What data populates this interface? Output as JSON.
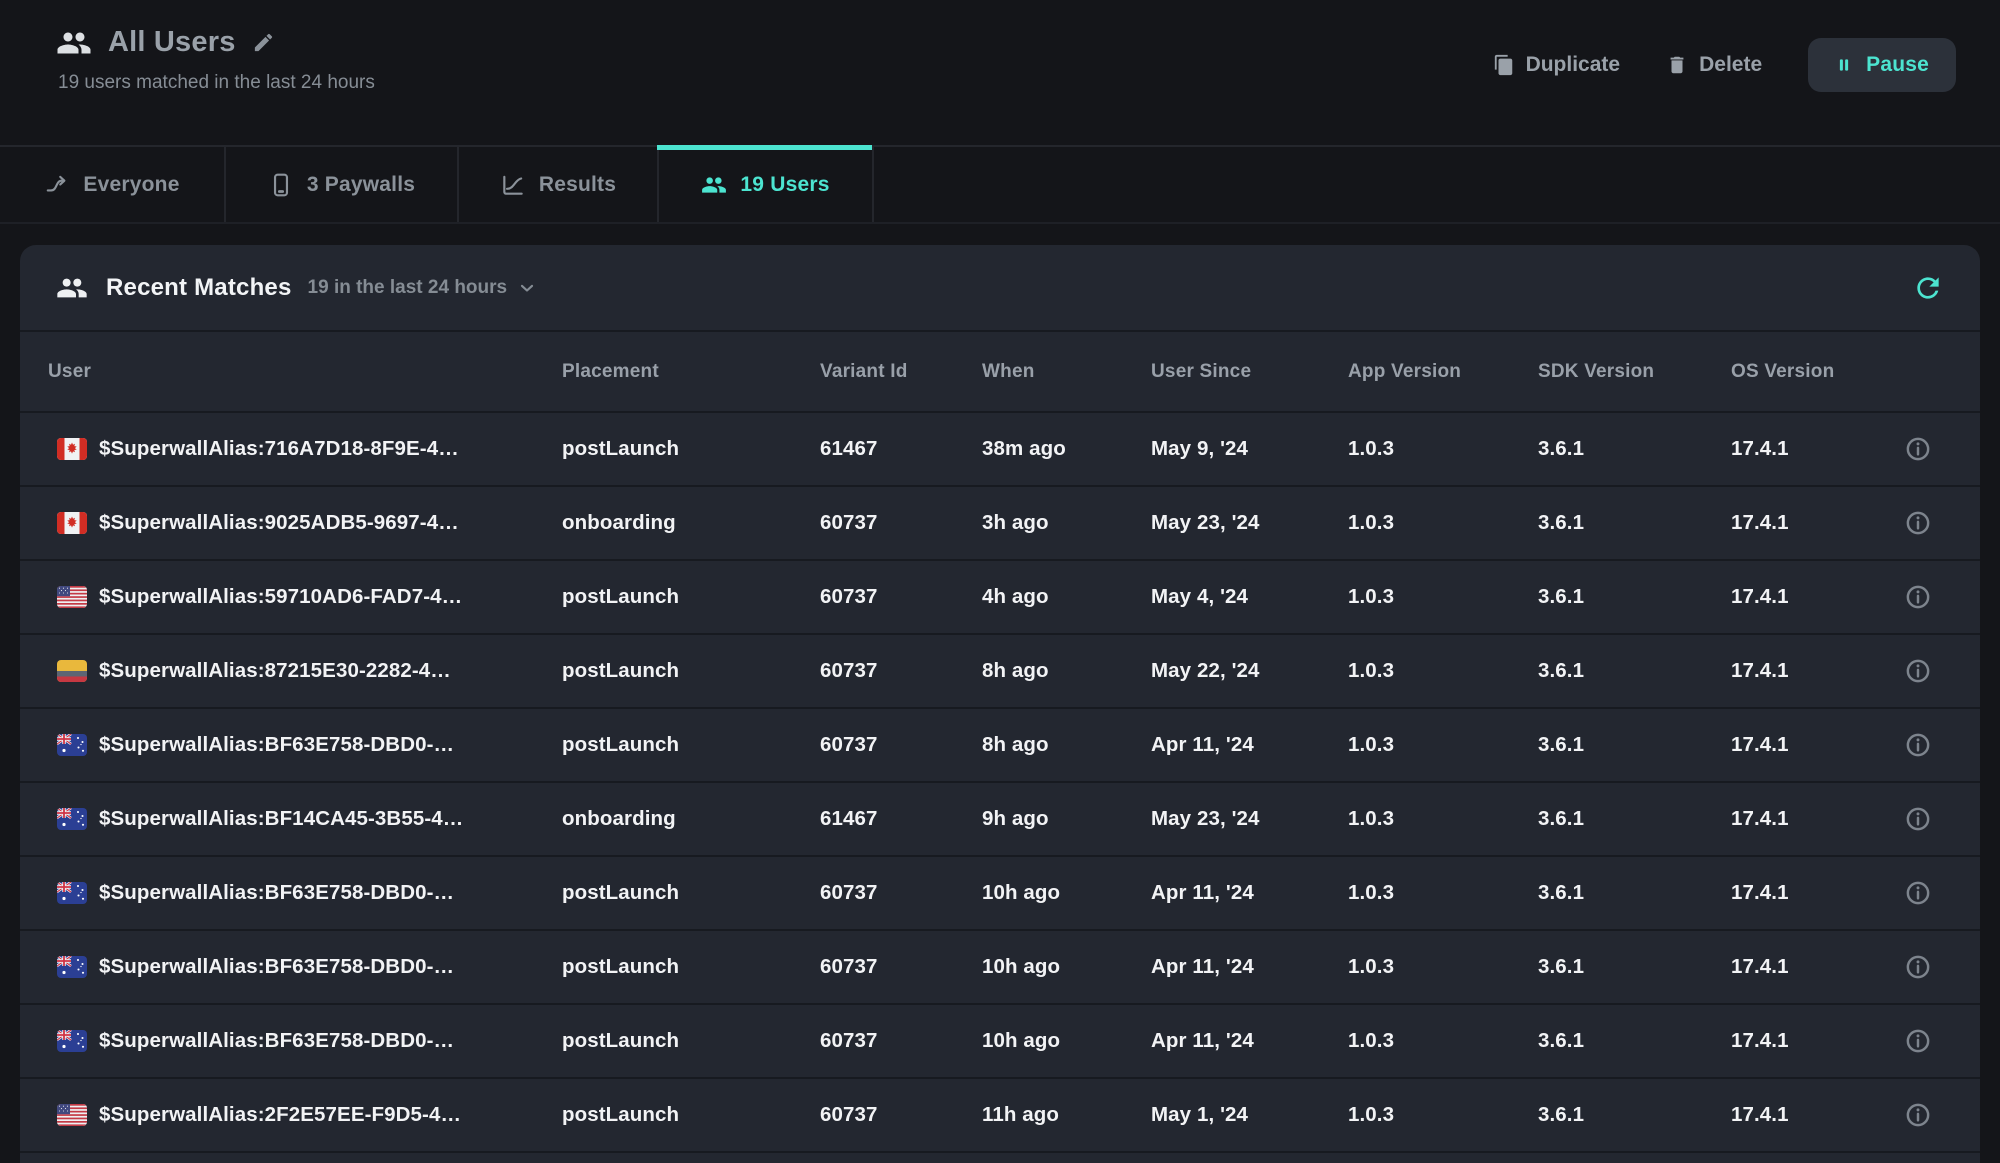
{
  "header": {
    "title": "All Users",
    "subtitle": "19 users matched in the last 24 hours",
    "icon": "users-icon",
    "edit_icon": "pencil-icon"
  },
  "actions": {
    "duplicate": {
      "label": "Duplicate",
      "icon": "copy-icon"
    },
    "delete": {
      "label": "Delete",
      "icon": "trash-icon"
    },
    "pause": {
      "label": "Pause",
      "icon": "pause-icon"
    }
  },
  "tabs": [
    {
      "label": "Everyone",
      "icon": "branch-arrow-icon",
      "active": false
    },
    {
      "label": "3 Paywalls",
      "icon": "phone-icon",
      "active": false
    },
    {
      "label": "Results",
      "icon": "line-chart-icon",
      "active": false
    },
    {
      "label": "19 Users",
      "icon": "users-icon",
      "active": true
    }
  ],
  "card": {
    "title": "Recent Matches",
    "icon": "users-icon",
    "range_filter": "19 in the last 24 hours",
    "range_chevron": "chevron-down-icon",
    "refresh_icon": "refresh-icon"
  },
  "table": {
    "columns": [
      "User",
      "Placement",
      "Variant Id",
      "When",
      "User Since",
      "App Version",
      "SDK Version",
      "OS Version"
    ],
    "rows": [
      {
        "flag": "canada",
        "user": "$SuperwallAlias:716A7D18-8F9E-4…",
        "placement": "postLaunch",
        "variant_id": "61467",
        "when": "38m ago",
        "user_since": "May 9, '24",
        "app_version": "1.0.3",
        "sdk_version": "3.6.1",
        "os_version": "17.4.1"
      },
      {
        "flag": "canada",
        "user": "$SuperwallAlias:9025ADB5-9697-4…",
        "placement": "onboarding",
        "variant_id": "60737",
        "when": "3h ago",
        "user_since": "May 23, '24",
        "app_version": "1.0.3",
        "sdk_version": "3.6.1",
        "os_version": "17.4.1"
      },
      {
        "flag": "usa",
        "user": "$SuperwallAlias:59710AD6-FAD7-4…",
        "placement": "postLaunch",
        "variant_id": "60737",
        "when": "4h ago",
        "user_since": "May 4, '24",
        "app_version": "1.0.3",
        "sdk_version": "3.6.1",
        "os_version": "17.4.1"
      },
      {
        "flag": "colombia",
        "user": "$SuperwallAlias:87215E30-2282-4…",
        "placement": "postLaunch",
        "variant_id": "60737",
        "when": "8h ago",
        "user_since": "May 22, '24",
        "app_version": "1.0.3",
        "sdk_version": "3.6.1",
        "os_version": "17.4.1"
      },
      {
        "flag": "australia",
        "user": "$SuperwallAlias:BF63E758-DBD0-…",
        "placement": "postLaunch",
        "variant_id": "60737",
        "when": "8h ago",
        "user_since": "Apr 11, '24",
        "app_version": "1.0.3",
        "sdk_version": "3.6.1",
        "os_version": "17.4.1"
      },
      {
        "flag": "australia",
        "user": "$SuperwallAlias:BF14CA45-3B55-4…",
        "placement": "onboarding",
        "variant_id": "61467",
        "when": "9h ago",
        "user_since": "May 23, '24",
        "app_version": "1.0.3",
        "sdk_version": "3.6.1",
        "os_version": "17.4.1"
      },
      {
        "flag": "australia",
        "user": "$SuperwallAlias:BF63E758-DBD0-…",
        "placement": "postLaunch",
        "variant_id": "60737",
        "when": "10h ago",
        "user_since": "Apr 11, '24",
        "app_version": "1.0.3",
        "sdk_version": "3.6.1",
        "os_version": "17.4.1"
      },
      {
        "flag": "australia",
        "user": "$SuperwallAlias:BF63E758-DBD0-…",
        "placement": "postLaunch",
        "variant_id": "60737",
        "when": "10h ago",
        "user_since": "Apr 11, '24",
        "app_version": "1.0.3",
        "sdk_version": "3.6.1",
        "os_version": "17.4.1"
      },
      {
        "flag": "australia",
        "user": "$SuperwallAlias:BF63E758-DBD0-…",
        "placement": "postLaunch",
        "variant_id": "60737",
        "when": "10h ago",
        "user_since": "Apr 11, '24",
        "app_version": "1.0.3",
        "sdk_version": "3.6.1",
        "os_version": "17.4.1"
      },
      {
        "flag": "usa",
        "user": "$SuperwallAlias:2F2E57EE-F9D5-4…",
        "placement": "postLaunch",
        "variant_id": "60737",
        "when": "11h ago",
        "user_since": "May 1, '24",
        "app_version": "1.0.3",
        "sdk_version": "3.6.1",
        "os_version": "17.4.1"
      }
    ]
  },
  "colors": {
    "accent": "#4ce4d0",
    "page_bg": "#141519",
    "card_bg": "#232730",
    "row_separator": "#171a20",
    "muted_text": "#8b929a"
  }
}
